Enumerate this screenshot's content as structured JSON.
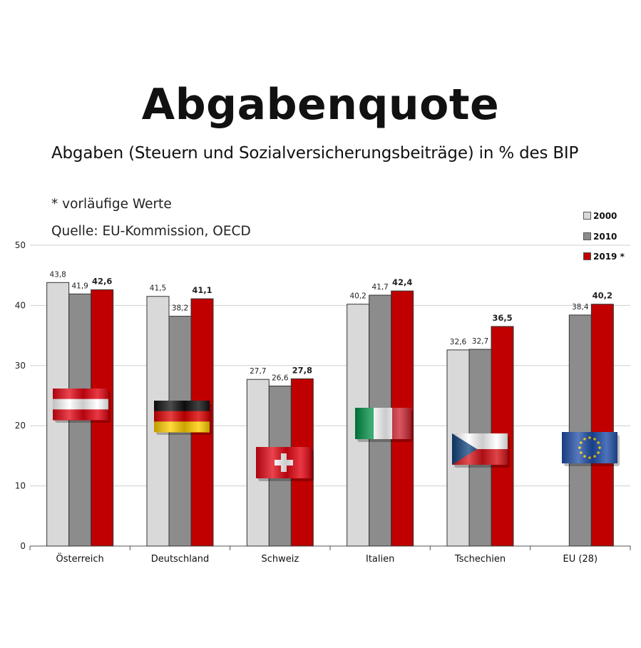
{
  "title": "Abgabenquote",
  "subtitle": "Abgaben (Steuern und Sozialversicherungsbeiträge) in % des BIP",
  "note": "* vorläufige Werte",
  "source": "Quelle: EU-Kommission, OECD",
  "chart_data": {
    "type": "bar",
    "title": "Abgabenquote",
    "xlabel": "",
    "ylabel": "",
    "ylim": [
      0,
      50
    ],
    "yticks": [
      0,
      10,
      20,
      30,
      40,
      50
    ],
    "grid": true,
    "legend_position": "top-right",
    "categories": [
      "Österreich",
      "Deutschland",
      "Schweiz",
      "Italien",
      "Tschechien",
      "EU (28)"
    ],
    "flags": [
      "austria-flag-icon",
      "germany-flag-icon",
      "switzerland-flag-icon",
      "italy-flag-icon",
      "czechia-flag-icon",
      "eu-flag-icon"
    ],
    "series": [
      {
        "name": "2000",
        "color": "#d9d9d9",
        "values": [
          43.8,
          41.5,
          27.7,
          40.2,
          32.6,
          null
        ],
        "labels": [
          "43,8",
          "41,5",
          "27,7",
          "40,2",
          "32,6",
          ""
        ]
      },
      {
        "name": "2010",
        "color": "#8c8c8c",
        "values": [
          41.9,
          38.2,
          26.6,
          41.7,
          32.7,
          38.4
        ],
        "labels": [
          "41,9",
          "38,2",
          "26,6",
          "41,7",
          "32,7",
          "38,4"
        ]
      },
      {
        "name": "2019 *",
        "color": "#c00000",
        "values": [
          42.6,
          41.1,
          27.8,
          42.4,
          36.5,
          40.2
        ],
        "labels": [
          "42,6",
          "41,1",
          "27,8",
          "42,4",
          "36,5",
          "40,2"
        ]
      }
    ]
  }
}
